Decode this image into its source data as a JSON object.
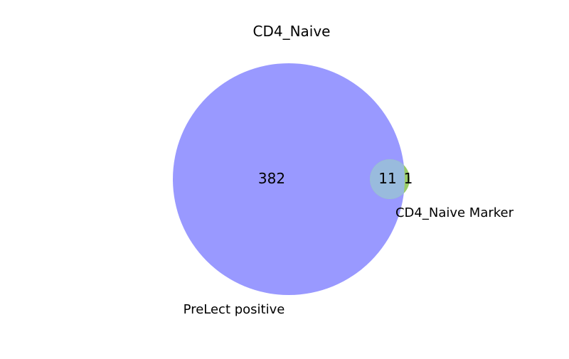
{
  "title": "CD4_Naive",
  "sets": [
    {
      "name": "PreLect positive",
      "color": "#9999ff"
    },
    {
      "name": "CD4_Naive Marker",
      "color": "#99cc66"
    }
  ],
  "overlap_color": "#99bbdd",
  "regions": {
    "only_a": "382",
    "both": "11",
    "only_b": "1"
  },
  "chart_data": {
    "type": "venn",
    "title": "CD4_Naive",
    "sets": [
      "PreLect positive",
      "CD4_Naive Marker"
    ],
    "values": {
      "PreLect positive only": 382,
      "both": 11,
      "CD4_Naive Marker only": 1
    }
  }
}
